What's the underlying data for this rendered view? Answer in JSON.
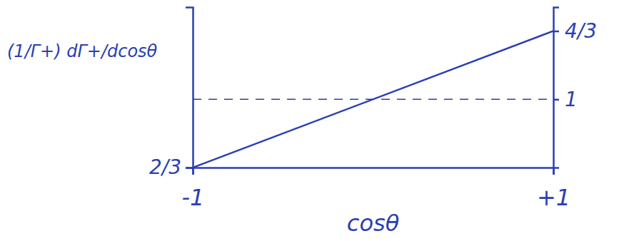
{
  "chart_data": {
    "type": "line",
    "ylabel": "(1/Γ+) dΓ+/dcosθ",
    "xlabel": "cosθ",
    "x": [
      -1,
      1
    ],
    "series": [
      {
        "color": "#2b3fb0",
        "line_style": "solid",
        "values": [
          0.6667,
          1.3333
        ]
      },
      {
        "color": "#2b3fb0",
        "line_style": "dashed",
        "values": [
          1,
          1
        ]
      }
    ],
    "xlim": [
      -1,
      1
    ],
    "xticks": [
      -1,
      {
        "value": 1,
        "label": "+1"
      }
    ],
    "ylim": [
      0.6667,
      1.45
    ],
    "yticks": [
      {
        "value": 0.6667,
        "label": "2/3"
      }
    ],
    "y2lim": [
      0.6667,
      1.45
    ],
    "y2ticks": [
      1,
      {
        "value": 1.3333,
        "label": "4/3"
      }
    ],
    "grid": false
  }
}
